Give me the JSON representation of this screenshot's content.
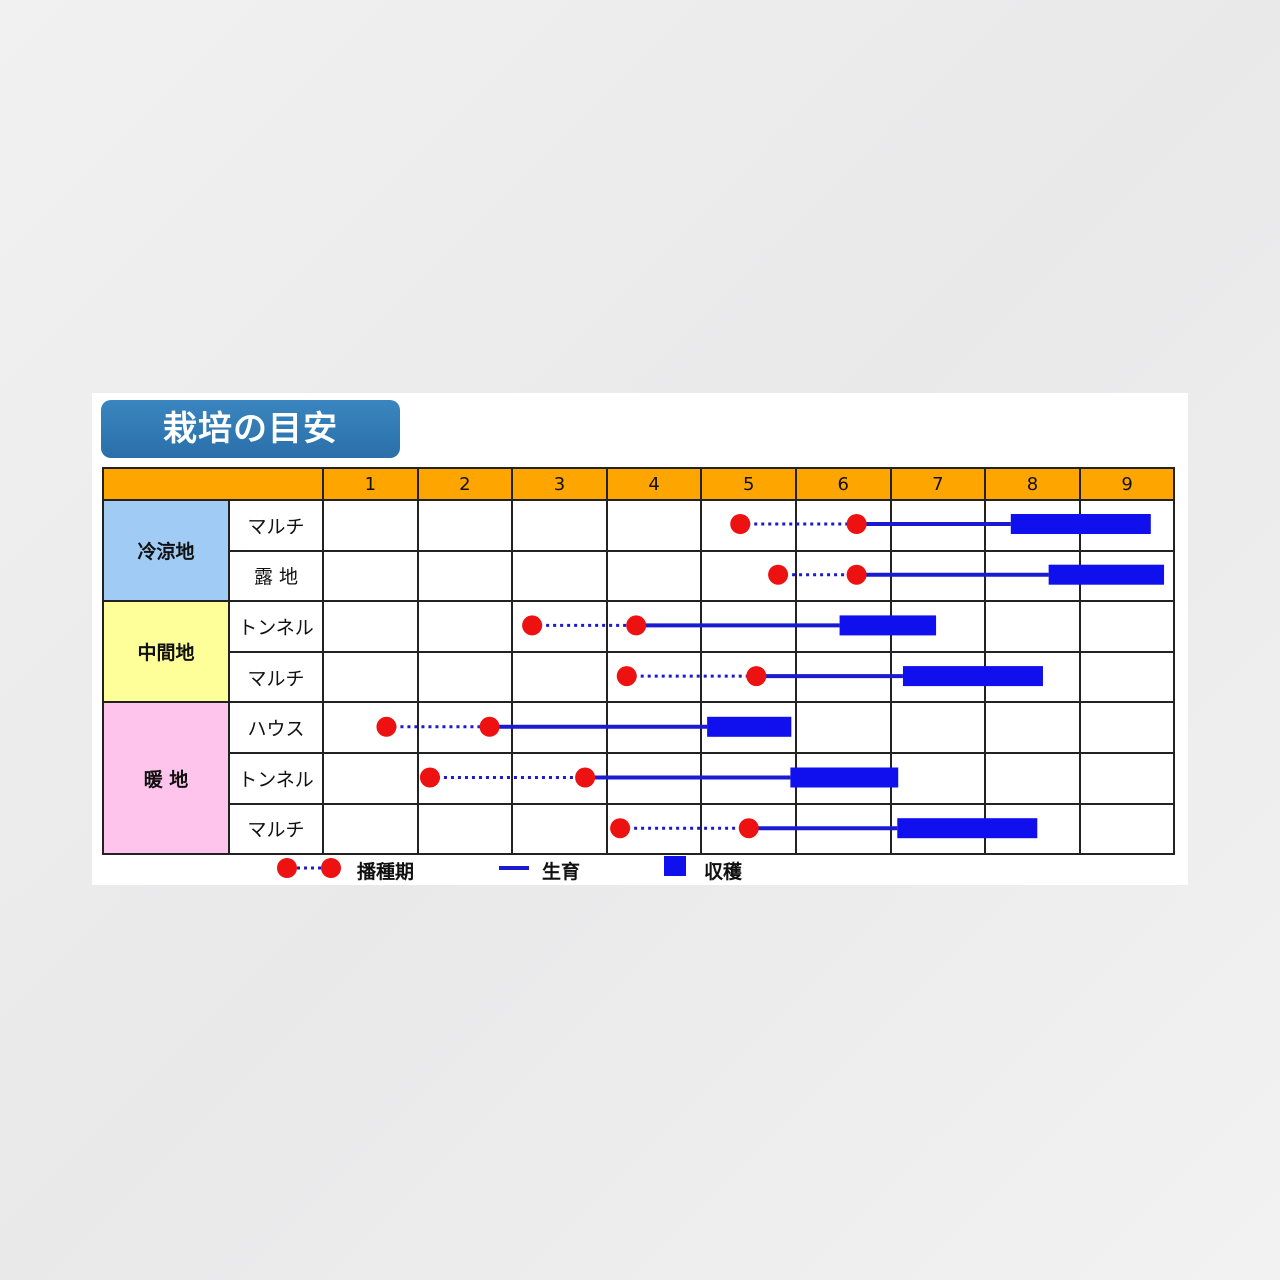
{
  "title": "栽培の目安",
  "chart_data": {
    "type": "gantt",
    "title": "栽培の目安",
    "months": [
      "1",
      "2",
      "3",
      "4",
      "5",
      "6",
      "7",
      "8",
      "9"
    ],
    "groups": [
      {
        "name": "冷涼地",
        "color": "#9fcbf5",
        "rows": [
          {
            "label": "マルチ",
            "sowing": [
              5.4,
              6.63
            ],
            "growth": [
              6.63,
              8.26
            ],
            "harvest": [
              8.26,
              9.74
            ]
          },
          {
            "label": "露 地",
            "sowing": [
              5.8,
              6.63
            ],
            "growth": [
              6.63,
              8.66
            ],
            "harvest": [
              8.66,
              9.88
            ]
          }
        ]
      },
      {
        "name": "中間地",
        "color": "#ffff99",
        "rows": [
          {
            "label": "トンネル",
            "sowing": [
              3.2,
              4.3
            ],
            "growth": [
              4.3,
              6.45
            ],
            "harvest": [
              6.45,
              7.47
            ]
          },
          {
            "label": "マルチ",
            "sowing": [
              4.2,
              5.57
            ],
            "growth": [
              5.57,
              7.12
            ],
            "harvest": [
              7.12,
              8.6
            ]
          }
        ]
      },
      {
        "name": "暖 地",
        "color": "#ffc4ec",
        "rows": [
          {
            "label": "ハウス",
            "sowing": [
              1.66,
              2.75
            ],
            "growth": [
              2.75,
              5.05
            ],
            "harvest": [
              5.05,
              5.94
            ]
          },
          {
            "label": "トンネル",
            "sowing": [
              2.12,
              3.76
            ],
            "growth": [
              3.76,
              5.93
            ],
            "harvest": [
              5.93,
              7.07
            ]
          },
          {
            "label": "マルチ",
            "sowing": [
              4.13,
              5.49
            ],
            "growth": [
              5.49,
              7.06
            ],
            "harvest": [
              7.06,
              8.54
            ]
          }
        ]
      }
    ],
    "legend": {
      "sowing": "播種期",
      "growth": "生育",
      "harvest": "収穫"
    },
    "colors": {
      "sowing": "#ee1111",
      "growth": "#1a1ad0",
      "harvest": "#1010ee",
      "header": "#ffa500"
    }
  }
}
